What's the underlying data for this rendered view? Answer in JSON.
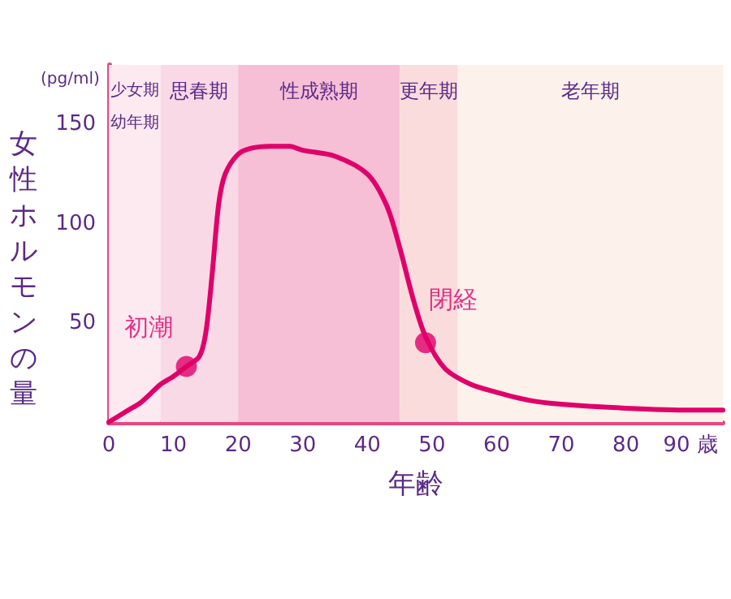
{
  "chart_data": {
    "type": "line",
    "xlabel": "年齢",
    "ylabel": "女性ホルモンの量",
    "annotations": [
      "(pg/ml)",
      {
        "text": "初潮",
        "x": 12,
        "y": 28
      },
      {
        "text": "閉経",
        "x": 49,
        "y": 40
      }
    ],
    "x": [
      0,
      3,
      5,
      8,
      10,
      12,
      14,
      15,
      16,
      17,
      18,
      20,
      22,
      25,
      28,
      30,
      35,
      40,
      43,
      45,
      47,
      49,
      52,
      56,
      60,
      65,
      70,
      80,
      90,
      95
    ],
    "series": [
      {
        "color": "#e0006a",
        "values": [
          0,
          6,
          10,
          19,
          23,
          28,
          33,
          45,
          75,
          110,
          125,
          135,
          138,
          139,
          139,
          137,
          134,
          125,
          109,
          88,
          63,
          43,
          27,
          19,
          15,
          11,
          9,
          7,
          6,
          6
        ]
      },
      {
        "type": "scatter",
        "marker": "circle",
        "color": "#e0006a",
        "x": [
          12,
          49
        ],
        "values": [
          28,
          40
        ]
      }
    ],
    "bands": [
      {
        "axis": "x",
        "from": 0,
        "to": 8,
        "label": "少女期幼年期",
        "color": "#fde9f0"
      },
      {
        "axis": "x",
        "from": 8,
        "to": 20,
        "label": "思春期",
        "color": "#f9d9e6"
      },
      {
        "axis": "x",
        "from": 20,
        "to": 45,
        "label": "性成熟期",
        "color": "#f6bfd5"
      },
      {
        "axis": "x",
        "from": 45,
        "to": 54,
        "label": "更年期",
        "color": "#fadcdd"
      },
      {
        "axis": "x",
        "from": 54,
        "to": 95,
        "label": "老年期",
        "color": "#fcf1eb"
      }
    ],
    "xlim": [
      0,
      95
    ],
    "xticks": [
      0,
      10,
      20,
      30,
      40,
      50,
      60,
      70,
      80,
      {
        "value": 90,
        "label": "90 歳"
      }
    ],
    "ylim": [
      0,
      180
    ],
    "yticks": [
      50,
      100,
      150
    ],
    "grid": false,
    "marker": "none",
    "line_style": "solid"
  }
}
